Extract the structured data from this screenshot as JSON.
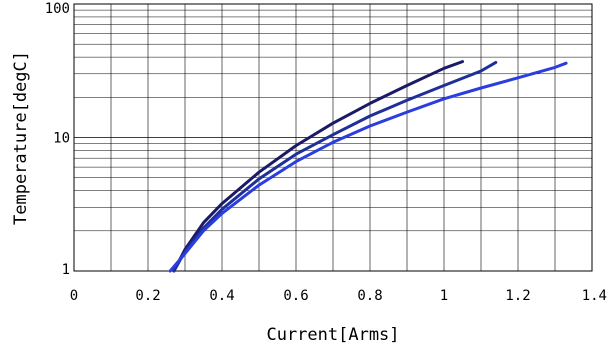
{
  "chart_data": {
    "type": "line",
    "xlabel": "Current[Arms]",
    "ylabel": "Temperature[degC]",
    "xlim": [
      0,
      1.4
    ],
    "ylim": [
      1,
      100
    ],
    "yscale": "log",
    "grid": true,
    "x_ticks": [
      "0",
      "0.2",
      "0.4",
      "0.6",
      "0.8",
      "1",
      "1.2",
      "1.4"
    ],
    "x_tick_values": [
      0,
      0.2,
      0.4,
      0.6,
      0.8,
      1.0,
      1.2,
      1.4
    ],
    "y_ticks": [
      "1",
      "10",
      "100"
    ],
    "y_tick_values": [
      1,
      10,
      100
    ],
    "series": [
      {
        "color": "#1a1a66",
        "x": [
          0.27,
          0.3,
          0.35,
          0.4,
          0.5,
          0.6,
          0.7,
          0.8,
          0.9,
          1.0,
          1.05
        ],
        "y": [
          1.0,
          1.45,
          2.3,
          3.2,
          5.5,
          8.7,
          12.8,
          18.0,
          24.5,
          33.0,
          37.0
        ]
      },
      {
        "color": "#1f2f9a",
        "x": [
          0.27,
          0.3,
          0.35,
          0.4,
          0.5,
          0.6,
          0.7,
          0.8,
          0.9,
          1.0,
          1.1,
          1.14
        ],
        "y": [
          1.0,
          1.4,
          2.1,
          2.9,
          4.9,
          7.5,
          10.5,
          14.5,
          19.0,
          24.5,
          31.5,
          36.5
        ]
      },
      {
        "color": "#2a3ee0",
        "x": [
          0.26,
          0.3,
          0.35,
          0.4,
          0.5,
          0.6,
          0.7,
          0.8,
          0.9,
          1.0,
          1.1,
          1.2,
          1.3,
          1.33
        ],
        "y": [
          1.0,
          1.35,
          2.0,
          2.7,
          4.4,
          6.6,
          9.2,
          12.2,
          15.5,
          19.5,
          23.5,
          28.0,
          33.5,
          36.0
        ]
      }
    ]
  }
}
